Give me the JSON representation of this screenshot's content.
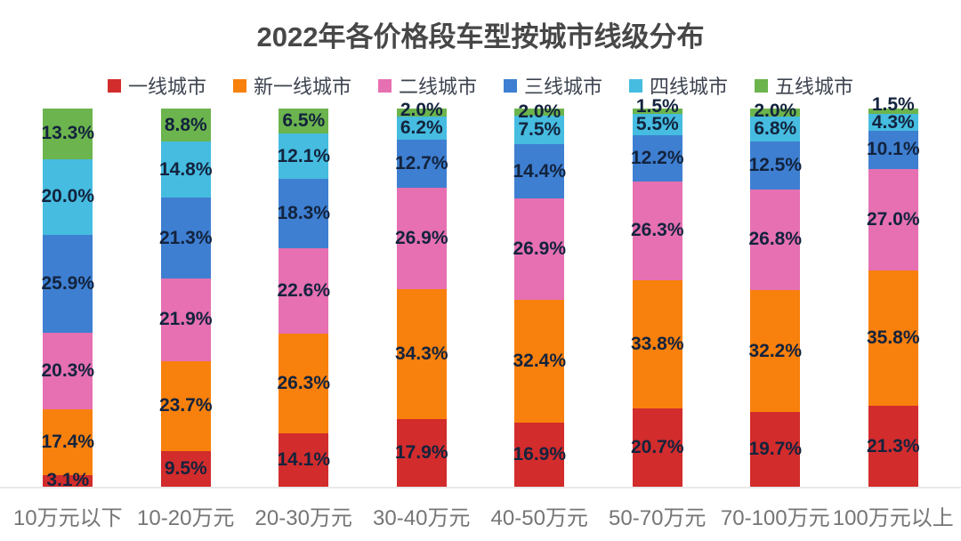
{
  "chart_data": {
    "type": "bar",
    "variant": "stacked-percent-column",
    "title": "2022年各价格段车型按城市线级分布",
    "legend_position": "top",
    "grid": false,
    "ylim": [
      0,
      100
    ],
    "value_suffix": "%",
    "categories": [
      "10万元以下",
      "10-20万元",
      "20-30万元",
      "30-40万元",
      "40-50万元",
      "50-70万元",
      "70-100万元",
      "100万元以上"
    ],
    "series": [
      {
        "name": "一线城市",
        "color": "#d22c2c",
        "values": [
          3.1,
          9.5,
          14.1,
          17.9,
          16.9,
          20.7,
          19.7,
          21.3
        ]
      },
      {
        "name": "新一线城市",
        "color": "#f8800c",
        "values": [
          17.4,
          23.7,
          26.3,
          34.3,
          32.4,
          33.8,
          32.2,
          35.8
        ]
      },
      {
        "name": "二线城市",
        "color": "#e670b1",
        "values": [
          20.3,
          21.9,
          22.6,
          26.9,
          26.9,
          26.3,
          26.8,
          27.0
        ]
      },
      {
        "name": "三线城市",
        "color": "#3e7fd1",
        "values": [
          25.9,
          21.3,
          18.3,
          12.7,
          14.4,
          12.2,
          12.5,
          10.1
        ]
      },
      {
        "name": "四线城市",
        "color": "#45bce0",
        "values": [
          20.0,
          14.8,
          12.1,
          6.2,
          7.5,
          5.5,
          6.8,
          4.3
        ]
      },
      {
        "name": "五线城市",
        "color": "#6cb44d",
        "values": [
          13.3,
          8.8,
          6.5,
          2.0,
          2.0,
          1.5,
          2.0,
          1.5
        ]
      }
    ],
    "colors": {
      "title_text": "#474747",
      "legend_text": "#3d4450",
      "segment_label_text": "#13233d",
      "category_label_text": "#757575",
      "baseline": "#e9e9e9",
      "background": "#ffffff"
    }
  }
}
